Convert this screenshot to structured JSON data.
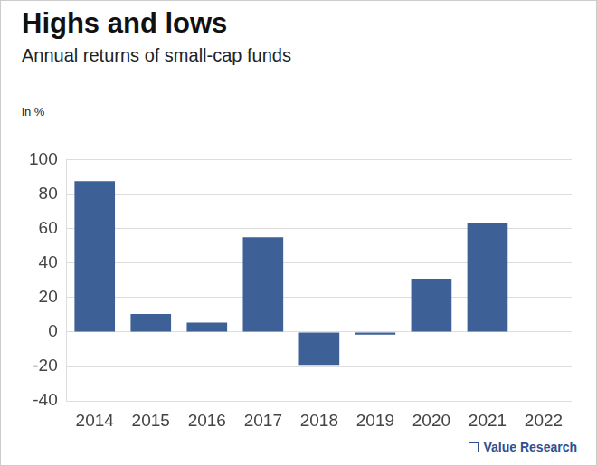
{
  "chart_data": {
    "type": "bar",
    "title": "Highs and lows",
    "subtitle": "Annual returns of small-cap funds",
    "y_label": "in %",
    "source": "Value Research",
    "categories": [
      "2014",
      "2015",
      "2016",
      "2017",
      "2018",
      "2019",
      "2020",
      "2021",
      "2022"
    ],
    "values": [
      87.5,
      10.5,
      5.5,
      55,
      -19,
      -1.5,
      31,
      63,
      -0.3
    ],
    "color": "#3d6096",
    "ylim": [
      -40,
      100
    ],
    "yticks": [
      -40,
      -20,
      0,
      20,
      40,
      60,
      80,
      100
    ],
    "grid": true
  }
}
